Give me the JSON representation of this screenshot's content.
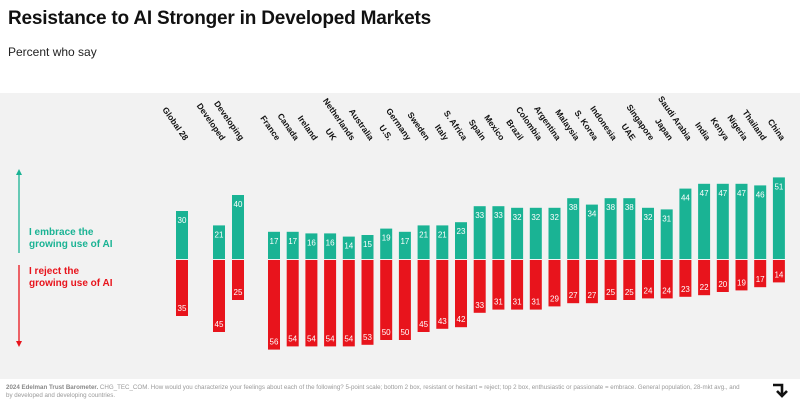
{
  "header": {
    "title": "Resistance to AI Stronger in Developed Markets",
    "subtitle": "Percent who say"
  },
  "footnote": {
    "source": "2024 Edelman Trust Barometer.",
    "text": "CHG_TEC_COM. How would you characterize your feelings about each of the following? 5-point scale; bottom 2 box, resistant or hesitant = reject; top 2 box, enthusiastic or passionate = embrace. General population, 28-mkt avg., and by developed and developing countries."
  },
  "colors": {
    "embrace": "#1ab394",
    "reject": "#e8141c",
    "panel": "#f2f2f2"
  },
  "icons": {
    "nav": "arrow-right-down-icon"
  },
  "chart_data": {
    "type": "bar",
    "layout": "diverging",
    "categories": [
      "Global 28",
      "Developed",
      "Developing",
      "France",
      "Canada",
      "Ireland",
      "UK",
      "Netherlands",
      "Australia",
      "U.S.",
      "Germany",
      "Sweden",
      "Italy",
      "S. Africa",
      "Spain",
      "Mexico",
      "Brazil",
      "Colombia",
      "Argentina",
      "Malaysia",
      "S. Korea",
      "Indonesia",
      "UAE",
      "Singapore",
      "Japan",
      "Saudi Arabia",
      "India",
      "Kenya",
      "Nigeria",
      "Thailand",
      "China"
    ],
    "series": [
      {
        "name": "I embrace the growing use of AI",
        "values": [
          30,
          21,
          40,
          17,
          17,
          16,
          16,
          14,
          15,
          19,
          17,
          21,
          21,
          23,
          33,
          33,
          32,
          32,
          32,
          38,
          34,
          38,
          38,
          32,
          31,
          44,
          47,
          47,
          47,
          46,
          51
        ]
      },
      {
        "name": "I reject the growing use of AI",
        "values": [
          35,
          45,
          25,
          56,
          54,
          54,
          54,
          54,
          53,
          50,
          50,
          45,
          43,
          42,
          33,
          31,
          31,
          31,
          29,
          27,
          27,
          25,
          25,
          24,
          24,
          23,
          22,
          20,
          19,
          17,
          14
        ]
      }
    ],
    "groups": [
      [
        "Global 28"
      ],
      [
        "Developed",
        "Developing"
      ],
      [
        "France",
        "Canada",
        "Ireland",
        "UK",
        "Netherlands",
        "Australia",
        "U.S.",
        "Germany",
        "Sweden",
        "Italy",
        "S. Africa",
        "Spain",
        "Mexico",
        "Brazil",
        "Colombia",
        "Argentina",
        "Malaysia",
        "S. Korea",
        "Indonesia",
        "UAE",
        "Singapore",
        "Japan",
        "Saudi Arabia",
        "India",
        "Kenya",
        "Nigeria",
        "Thailand",
        "China"
      ]
    ],
    "axis_labels": {
      "up": "I embrace the growing use of AI",
      "down": "I reject the growing use of AI"
    },
    "legend": "left",
    "grid": false
  }
}
